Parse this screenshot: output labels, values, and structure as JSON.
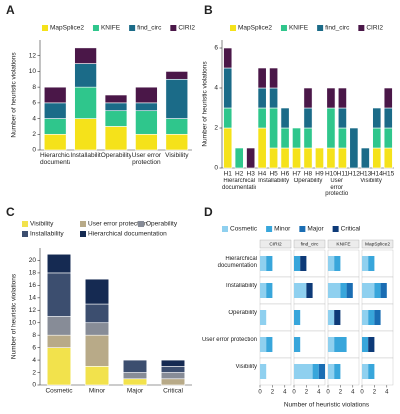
{
  "chart_data": [
    {
      "type": "stacked_bar",
      "panel": "A",
      "categories": [
        "Hierarchical documentation",
        "Installability",
        "Operability",
        "User error protection",
        "Visibility"
      ],
      "series": [
        {
          "name": "MapSplice2",
          "color": "#f5e21a",
          "values": [
            2,
            4,
            3,
            2,
            2
          ]
        },
        {
          "name": "KNIFE",
          "color": "#2fc68c",
          "values": [
            2,
            4,
            2,
            3,
            2
          ]
        },
        {
          "name": "find_circ",
          "color": "#1b6b88",
          "values": [
            2,
            3,
            1,
            1,
            5
          ]
        },
        {
          "name": "CIRI2",
          "color": "#4a1748",
          "values": [
            2,
            2,
            1,
            2,
            1
          ]
        }
      ],
      "y_label": "Number of heuristic violations",
      "ylim": [
        0,
        14
      ],
      "yticks": [
        0,
        2,
        4,
        6,
        8,
        10,
        12
      ]
    },
    {
      "type": "stacked_bar",
      "panel": "B",
      "groups": [
        {
          "label": "Hierarchical documentation",
          "categories": [
            "H1",
            "H2",
            "H3"
          ]
        },
        {
          "label": "Installability",
          "categories": [
            "H4",
            "H5",
            "H6"
          ]
        },
        {
          "label": "Operability",
          "categories": [
            "H7",
            "H8",
            "H9"
          ]
        },
        {
          "label": "User error protection",
          "categories": [
            "H10",
            "H11"
          ]
        },
        {
          "label": "Visibility",
          "categories": [
            "H12",
            "H13",
            "H14",
            "H15"
          ]
        }
      ],
      "series": [
        {
          "name": "MapSplice2",
          "color": "#f5e21a",
          "values": [
            2,
            0,
            0,
            2,
            1,
            1,
            1,
            1,
            1,
            1,
            1,
            0,
            0,
            1,
            1
          ]
        },
        {
          "name": "KNIFE",
          "color": "#2fc68c",
          "values": [
            1,
            1,
            0,
            1,
            2,
            1,
            1,
            1,
            0,
            2,
            1,
            0,
            0,
            1,
            1
          ]
        },
        {
          "name": "find_circ",
          "color": "#1b6b88",
          "values": [
            2,
            0,
            0,
            1,
            1,
            1,
            0,
            1,
            0,
            0,
            1,
            2,
            1,
            1,
            1
          ]
        },
        {
          "name": "CIRI2",
          "color": "#4a1748",
          "values": [
            1,
            0,
            1,
            1,
            1,
            0,
            0,
            1,
            0,
            1,
            1,
            0,
            0,
            0,
            1
          ]
        }
      ],
      "y_label": "Number of heuristic violations",
      "ylim": [
        0,
        6.4
      ],
      "yticks": [
        0,
        2,
        4,
        6
      ]
    },
    {
      "type": "stacked_bar",
      "panel": "C",
      "categories": [
        "Cosmetic",
        "Minor",
        "Major",
        "Critical"
      ],
      "series": [
        {
          "name": "Visibility",
          "color": "#f2e24c",
          "values": [
            6,
            3,
            1,
            0
          ]
        },
        {
          "name": "User error protection",
          "color": "#b8aa88",
          "values": [
            2,
            5,
            0,
            1
          ]
        },
        {
          "name": "Operability",
          "color": "#878c97",
          "values": [
            3,
            2,
            1,
            1
          ]
        },
        {
          "name": "Installability",
          "color": "#3c4e6f",
          "values": [
            7,
            3,
            2,
            1
          ]
        },
        {
          "name": "Hierarchical documentation",
          "color": "#152a52",
          "values": [
            3,
            4,
            0,
            1
          ]
        }
      ],
      "y_label": "Number of heuristic violations",
      "ylim": [
        0,
        22
      ],
      "yticks": [
        0,
        2,
        4,
        6,
        8,
        10,
        12,
        14,
        16,
        18,
        20
      ]
    },
    {
      "type": "facet_bar",
      "panel": "D",
      "columns": [
        "CIRI2",
        "find_circ",
        "KNIFE",
        "MapSplice2"
      ],
      "rows": [
        "Hierarchical documentation",
        "Installability",
        "Operability",
        "User error protection",
        "Visibility"
      ],
      "series": [
        {
          "name": "Cosmetic",
          "color": "#8fd0ef",
          "values": [
            [
              1,
              0,
              1,
              1
            ],
            [
              1,
              2,
              2,
              2
            ],
            [
              1,
              0,
              1,
              1
            ],
            [
              1,
              0,
              1,
              0
            ],
            [
              1,
              3,
              1,
              1
            ]
          ]
        },
        {
          "name": "Minor",
          "color": "#38a6db",
          "values": [
            [
              1,
              1,
              1,
              1
            ],
            [
              1,
              0,
              1,
              1
            ],
            [
              0,
              1,
              0,
              1
            ],
            [
              1,
              1,
              2,
              1
            ],
            [
              0,
              1,
              1,
              1
            ]
          ]
        },
        {
          "name": "Major",
          "color": "#1a6db3",
          "values": [
            [
              0,
              0,
              0,
              0
            ],
            [
              0,
              0,
              1,
              1
            ],
            [
              0,
              0,
              0,
              1
            ],
            [
              0,
              0,
              0,
              0
            ],
            [
              0,
              1,
              0,
              0
            ]
          ]
        },
        {
          "name": "Critical",
          "color": "#0d3a78",
          "values": [
            [
              0,
              1,
              0,
              0
            ],
            [
              0,
              1,
              0,
              0
            ],
            [
              0,
              0,
              1,
              0
            ],
            [
              0,
              0,
              0,
              1
            ],
            [
              0,
              0,
              0,
              0
            ]
          ]
        }
      ],
      "x_label": "Number of heuristic violations",
      "xlim": [
        0,
        5
      ],
      "xticks": [
        0,
        2,
        4
      ]
    }
  ]
}
